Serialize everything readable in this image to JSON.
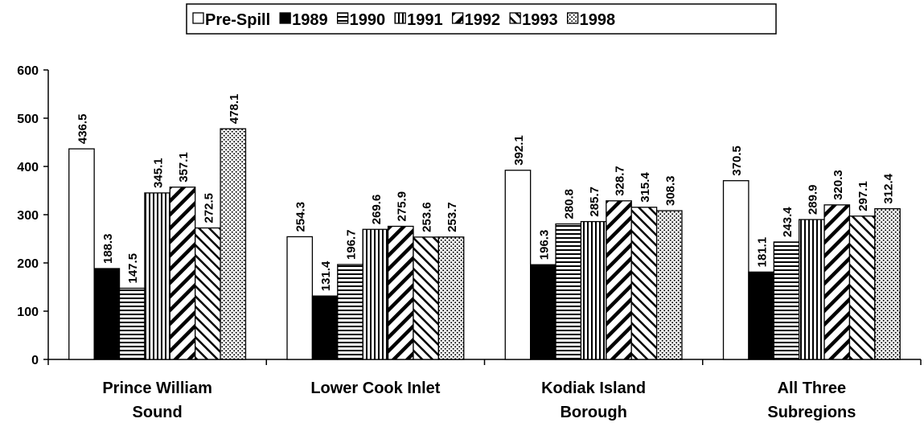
{
  "chart_data": {
    "type": "bar",
    "categories": [
      "Prince William Sound",
      "Lower Cook Inlet",
      "Kodiak Island Borough",
      "All Three Subregions"
    ],
    "series": [
      {
        "name": "Pre-Spill",
        "pattern": "none",
        "values": [
          436.5,
          254.3,
          392.1,
          370.5
        ]
      },
      {
        "name": "1989",
        "pattern": "solid",
        "values": [
          188.3,
          131.4,
          196.3,
          181.1
        ]
      },
      {
        "name": "1990",
        "pattern": "horizontal",
        "values": [
          147.5,
          196.7,
          280.8,
          243.4
        ]
      },
      {
        "name": "1991",
        "pattern": "vertical",
        "values": [
          345.1,
          269.6,
          285.7,
          289.9
        ]
      },
      {
        "name": "1992",
        "pattern": "diagonal-down",
        "values": [
          357.1,
          275.9,
          328.7,
          320.3
        ]
      },
      {
        "name": "1993",
        "pattern": "diagonal-up",
        "values": [
          272.5,
          253.6,
          315.4,
          297.1
        ]
      },
      {
        "name": "1998",
        "pattern": "dots",
        "values": [
          478.1,
          253.7,
          308.3,
          312.4
        ]
      }
    ],
    "ylim": [
      0,
      600
    ],
    "yticks": [
      0,
      100,
      200,
      300,
      400,
      500,
      600
    ],
    "grid": false,
    "legend": "top"
  }
}
